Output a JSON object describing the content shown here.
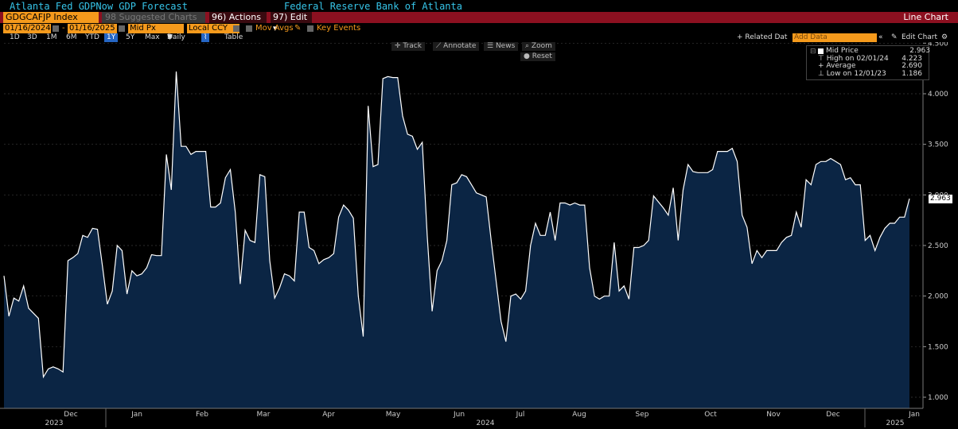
{
  "header": {
    "title": "Atlanta Fed GDPNow GDP Forecast",
    "source": "Federal Reserve Bank of Atlanta"
  },
  "toolbar": {
    "ticker": "GDGCAFJP Index",
    "suggested": "98 Suggested Charts",
    "actions": "96) Actions",
    "edit": "97) Edit",
    "chart_type": "Line Chart"
  },
  "controls": {
    "start_date": "01/16/2024",
    "end_date": "01/16/2025",
    "price_field": "Mid Px",
    "currency": "Local CCY",
    "mov_avgs": "Mov Avgs",
    "key_events": "Key Events",
    "related_data": "+ Related Dat",
    "add_data_placeholder": "Add Data",
    "edit_chart": "Edit Chart"
  },
  "ranges": [
    "1D",
    "3D",
    "1M",
    "6M",
    "YTD",
    "1Y",
    "5Y",
    "Max"
  ],
  "range_selected": "1Y",
  "periodicity": "Daily",
  "table_label": "Table",
  "tools": {
    "track": "Track",
    "annotate": "Annotate",
    "news": "News",
    "zoom": "Zoom",
    "reset": "Reset"
  },
  "legend": {
    "mid_label": "Mid Price",
    "mid_value": "2.963",
    "high_label": "High on 02/01/24",
    "high_value": "4.223",
    "avg_label": "Average",
    "avg_value": "2.690",
    "low_label": "Low on 12/01/23",
    "low_value": "1.186"
  },
  "last_value_label": "2.963",
  "colors": {
    "line": "#ffffff",
    "fill": "#0b2544",
    "accent": "#f59a1c",
    "bar": "#8c1020"
  },
  "chart_data": {
    "type": "area",
    "ylim": [
      0.9,
      4.5
    ],
    "y_ticks": [
      "1.000",
      "1.500",
      "2.000",
      "2.500",
      "3.000",
      "3.500",
      "4.000",
      "4.500"
    ],
    "y_tick_values": [
      1.0,
      1.5,
      2.0,
      2.5,
      3.0,
      3.5,
      4.0,
      4.5
    ],
    "x_month_labels": [
      "Dec",
      "Jan",
      "Feb",
      "Mar",
      "Apr",
      "May",
      "Jun",
      "Jul",
      "Aug",
      "Sep",
      "Oct",
      "Nov",
      "Dec",
      "Jan"
    ],
    "x_year_labels": [
      "2023",
      "2024",
      "2025"
    ],
    "values": [
      2.2,
      1.8,
      1.98,
      1.95,
      2.1,
      1.88,
      1.83,
      1.78,
      1.2,
      1.28,
      1.3,
      1.28,
      1.25,
      2.35,
      2.38,
      2.42,
      2.6,
      2.58,
      2.67,
      2.66,
      2.3,
      1.92,
      2.05,
      2.5,
      2.45,
      2.02,
      2.25,
      2.2,
      2.22,
      2.28,
      2.41,
      2.4,
      2.4,
      3.4,
      3.05,
      4.22,
      3.48,
      3.48,
      3.4,
      3.43,
      3.43,
      3.43,
      2.88,
      2.88,
      2.92,
      3.17,
      3.25,
      2.83,
      2.12,
      2.65,
      2.55,
      2.53,
      3.2,
      3.18,
      2.35,
      1.98,
      2.08,
      2.22,
      2.2,
      2.15,
      2.83,
      2.83,
      2.48,
      2.45,
      2.32,
      2.36,
      2.38,
      2.42,
      2.78,
      2.9,
      2.85,
      2.77,
      2.0,
      1.6,
      3.88,
      3.28,
      3.3,
      4.15,
      4.17,
      4.16,
      4.16,
      3.78,
      3.6,
      3.58,
      3.45,
      3.52,
      2.6,
      1.85,
      2.25,
      2.35,
      2.55,
      3.1,
      3.12,
      3.2,
      3.18,
      3.1,
      3.02,
      3.0,
      2.98,
      2.55,
      2.15,
      1.75,
      1.55,
      2.0,
      2.02,
      1.97,
      2.05,
      2.5,
      2.72,
      2.6,
      2.6,
      2.83,
      2.55,
      2.92,
      2.92,
      2.9,
      2.92,
      2.9,
      2.9,
      2.28,
      2.0,
      1.97,
      2.0,
      2.0,
      2.53,
      2.05,
      2.1,
      1.97,
      2.48,
      2.48,
      2.5,
      2.55,
      2.99,
      2.93,
      2.87,
      2.8,
      3.07,
      2.55,
      3.05,
      3.3,
      3.23,
      3.22,
      3.22,
      3.22,
      3.25,
      3.43,
      3.43,
      3.43,
      3.46,
      3.33,
      2.8,
      2.68,
      2.32,
      2.45,
      2.38,
      2.45,
      2.45,
      2.45,
      2.53,
      2.58,
      2.6,
      2.83,
      2.68,
      3.15,
      3.1,
      3.3,
      3.33,
      3.33,
      3.36,
      3.33,
      3.3,
      3.15,
      3.17,
      3.1,
      3.1,
      2.55,
      2.6,
      2.45,
      2.58,
      2.67,
      2.72,
      2.72,
      2.78,
      2.78,
      2.963
    ]
  }
}
